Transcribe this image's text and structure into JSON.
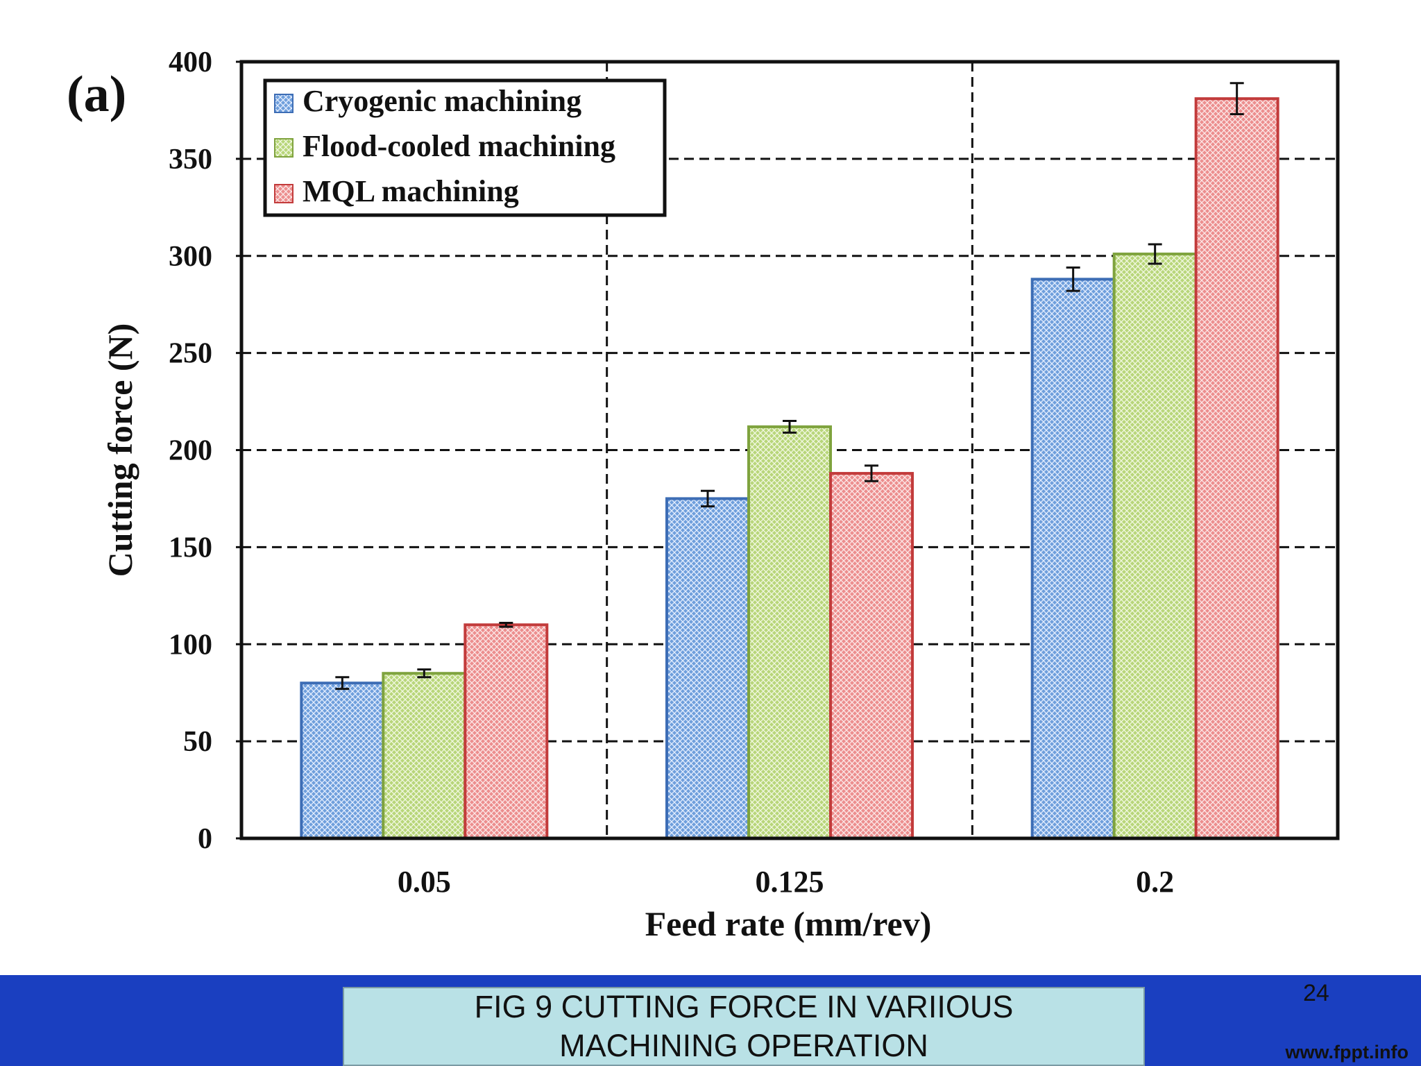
{
  "panel_label": "(a)",
  "caption": "FIG 9 CUTTING FORCE IN VARIIOUS MACHINING OPERATION",
  "page_number": "24",
  "site_url": "www.fppt.info",
  "colors": {
    "footer_bar": "#1a3fc0",
    "caption_box": "#b9e1e6",
    "cryogenic": "#6f9fdc",
    "cryogenic_edge": "#3d6db5",
    "flood": "#b8d67a",
    "flood_edge": "#7fa33e",
    "mql": "#ec8e8e",
    "mql_edge": "#c23b3b"
  },
  "chart_data": {
    "type": "bar",
    "title": "",
    "xlabel": "Feed rate (mm/rev)",
    "ylabel": "Cutting force (N)",
    "categories": [
      "0.05",
      "0.125",
      "0.2"
    ],
    "ylim": [
      0,
      400
    ],
    "yticks": [
      0,
      50,
      100,
      150,
      200,
      250,
      300,
      350,
      400
    ],
    "grid": true,
    "legend_position": "top-left",
    "series": [
      {
        "name": "Cryogenic machining",
        "values": [
          80,
          175,
          288
        ],
        "errors": [
          3,
          4,
          6
        ],
        "color_key": "cryogenic"
      },
      {
        "name": "Flood-cooled machining",
        "values": [
          85,
          212,
          301
        ],
        "errors": [
          2,
          3,
          5
        ],
        "color_key": "flood"
      },
      {
        "name": "MQL machining",
        "values": [
          110,
          188,
          381
        ],
        "errors": [
          1,
          4,
          8
        ],
        "color_key": "mql"
      }
    ]
  }
}
